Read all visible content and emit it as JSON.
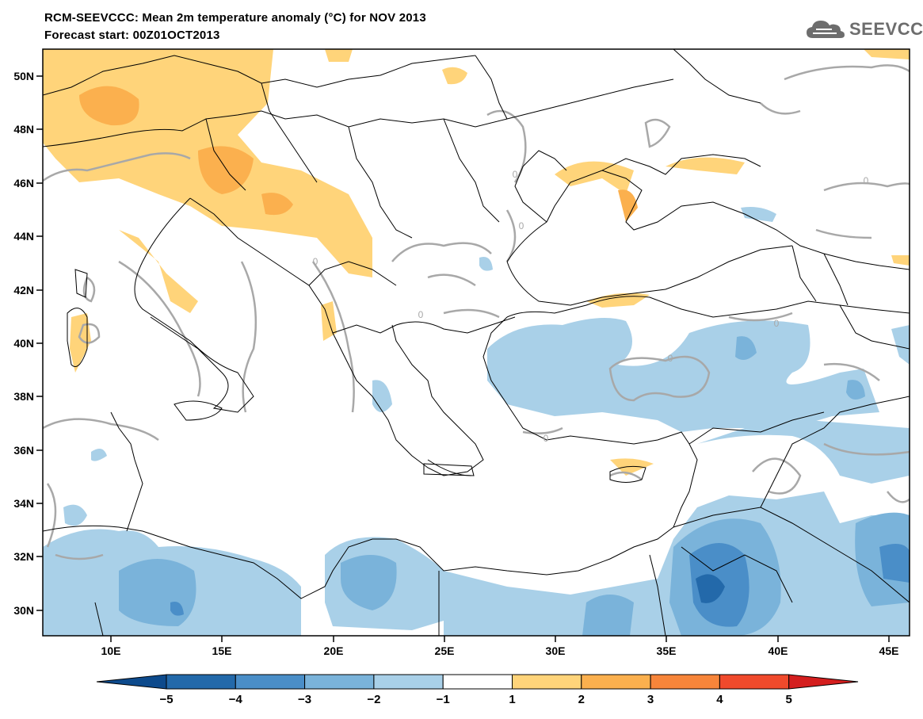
{
  "header": {
    "title_line1": "RCM-SEEVCCC: Mean 2m temperature anomaly (°C) for NOV 2013",
    "title_line2": "Forecast start: 00Z01OCT2013",
    "logo_text": "SEEVCCC"
  },
  "map": {
    "lat_labels": [
      "50N",
      "48N",
      "46N",
      "44N",
      "42N",
      "40N",
      "38N",
      "36N",
      "34N",
      "32N",
      "30N"
    ],
    "lon_labels": [
      "10E",
      "15E",
      "20E",
      "25E",
      "30E",
      "35E",
      "40E",
      "45E"
    ],
    "contour_label": "0",
    "ocean_color": "#ffffff",
    "coast_color": "#000000"
  },
  "colorbar": {
    "labels": [
      "−5",
      "−4",
      "−3",
      "−2",
      "−1",
      "1",
      "2",
      "3",
      "4",
      "5"
    ],
    "colors": [
      "#0d4a8c",
      "#2369aa",
      "#4a8ec8",
      "#7ab3da",
      "#a9d0e8",
      "#ffffff",
      "#ffd47a",
      "#fbb04e",
      "#f7853a",
      "#f04a2c",
      "#d41e1e"
    ]
  }
}
